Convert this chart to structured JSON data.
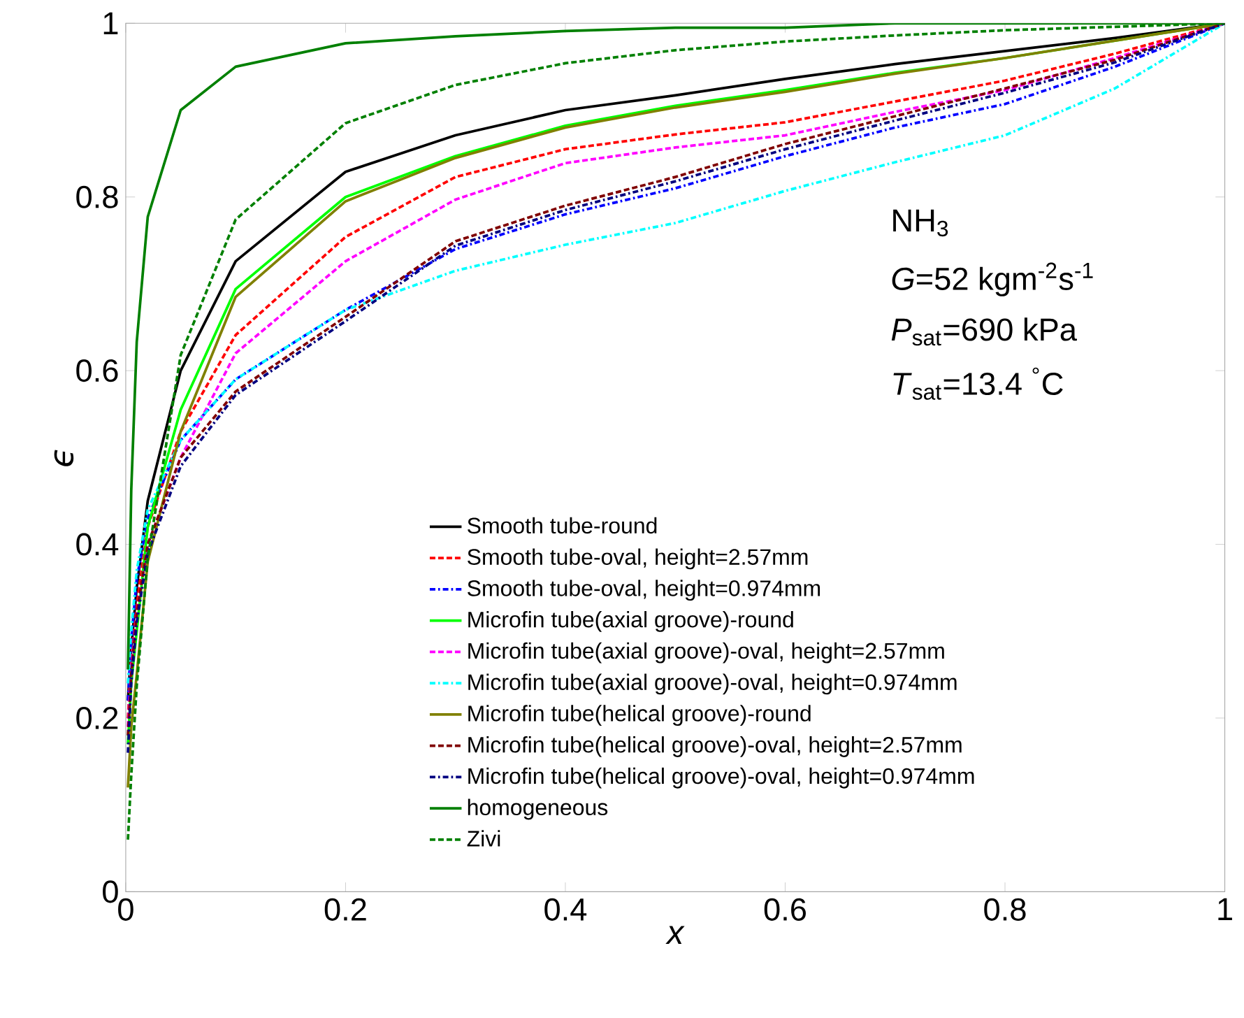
{
  "chart_data": {
    "type": "line",
    "xlabel": "x",
    "ylabel": "ϵ",
    "x": [
      0.002,
      0.005,
      0.01,
      0.02,
      0.05,
      0.1,
      0.2,
      0.3,
      0.4,
      0.5,
      0.6,
      0.7,
      0.8,
      0.9,
      1.0
    ],
    "xlim": [
      0,
      1
    ],
    "ylim": [
      0,
      1
    ],
    "xticks": [
      0,
      0.2,
      0.4,
      0.6,
      0.8,
      1
    ],
    "yticks": [
      0,
      0.2,
      0.4,
      0.6,
      0.8,
      1
    ],
    "grid": false,
    "legend": "bottom right",
    "marker": "none",
    "series": [
      {
        "name": "Smooth tube-round",
        "color": "#000000",
        "line_style": "solid",
        "values": [
          0.22,
          0.28,
          0.35,
          0.45,
          0.6,
          0.726,
          0.829,
          0.871,
          0.9,
          0.917,
          0.936,
          0.953,
          0.968,
          0.983,
          1.0
        ]
      },
      {
        "name": "Smooth tube-oval, height=2.57mm",
        "color": "#ff0000",
        "line_style": "dashed",
        "values": [
          0.2,
          0.27,
          0.33,
          0.42,
          0.53,
          0.641,
          0.754,
          0.823,
          0.855,
          0.872,
          0.886,
          0.91,
          0.934,
          0.965,
          1.0
        ]
      },
      {
        "name": "Smooth tube-oval, height=0.974mm",
        "color": "#0000ff",
        "line_style": "dashdot",
        "values": [
          0.22,
          0.29,
          0.36,
          0.43,
          0.52,
          0.59,
          0.67,
          0.74,
          0.78,
          0.81,
          0.847,
          0.88,
          0.907,
          0.95,
          1.0
        ]
      },
      {
        "name": "Microfin tube(axial groove)-round",
        "color": "#00ff00",
        "line_style": "solid",
        "values": [
          0.17,
          0.24,
          0.3,
          0.42,
          0.555,
          0.694,
          0.8,
          0.847,
          0.882,
          0.905,
          0.923,
          0.943,
          0.96,
          0.98,
          1.0
        ]
      },
      {
        "name": "Microfin tube(axial groove)-oval, height=2.57mm",
        "color": "#ff00ff",
        "line_style": "dashed",
        "values": [
          0.19,
          0.26,
          0.32,
          0.4,
          0.5,
          0.62,
          0.726,
          0.797,
          0.839,
          0.857,
          0.871,
          0.898,
          0.923,
          0.96,
          1.0
        ]
      },
      {
        "name": "Microfin tube(axial groove)-oval, height=0.974mm",
        "color": "#00ffff",
        "line_style": "dashdot",
        "values": [
          0.24,
          0.3,
          0.37,
          0.44,
          0.52,
          0.59,
          0.67,
          0.715,
          0.745,
          0.77,
          0.807,
          0.84,
          0.871,
          0.925,
          1.0
        ]
      },
      {
        "name": "Microfin tube(helical groove)-round",
        "color": "#808000",
        "line_style": "solid",
        "values": [
          0.12,
          0.19,
          0.25,
          0.38,
          0.53,
          0.685,
          0.795,
          0.845,
          0.88,
          0.903,
          0.921,
          0.942,
          0.96,
          0.98,
          1.0
        ]
      },
      {
        "name": "Microfin tube(helical groove)-oval, height=2.57mm",
        "color": "#800000",
        "line_style": "dashed",
        "values": [
          0.18,
          0.25,
          0.32,
          0.4,
          0.5,
          0.576,
          0.662,
          0.749,
          0.79,
          0.823,
          0.861,
          0.893,
          0.925,
          0.958,
          1.0
        ]
      },
      {
        "name": "Microfin tube(helical groove)-oval, height=0.974mm",
        "color": "#000080",
        "line_style": "dashdot",
        "values": [
          0.16,
          0.24,
          0.31,
          0.39,
          0.49,
          0.572,
          0.657,
          0.744,
          0.785,
          0.818,
          0.855,
          0.888,
          0.92,
          0.955,
          1.0
        ]
      },
      {
        "name": "homogeneous",
        "color": "#008000",
        "line_style": "solid",
        "values": [
          0.256,
          0.462,
          0.633,
          0.777,
          0.9,
          0.95,
          0.977,
          0.985,
          0.991,
          0.995,
          0.995,
          1.0,
          1.0,
          1.0,
          1.0
        ]
      },
      {
        "name": "Zivi",
        "color": "#008000",
        "line_style": "dashed",
        "values": [
          0.06,
          0.134,
          0.237,
          0.384,
          0.618,
          0.774,
          0.885,
          0.929,
          0.954,
          0.969,
          0.979,
          0.986,
          0.992,
          0.996,
          1.0
        ]
      }
    ],
    "annotations": [
      "NH$_{3}$",
      "*G*=52 kgm$^{-2}$s$^{-1}$",
      "*P*$_{sat}$=690 kPa",
      "*T*$_{sat}$=13.4 $^{°}$C"
    ]
  }
}
